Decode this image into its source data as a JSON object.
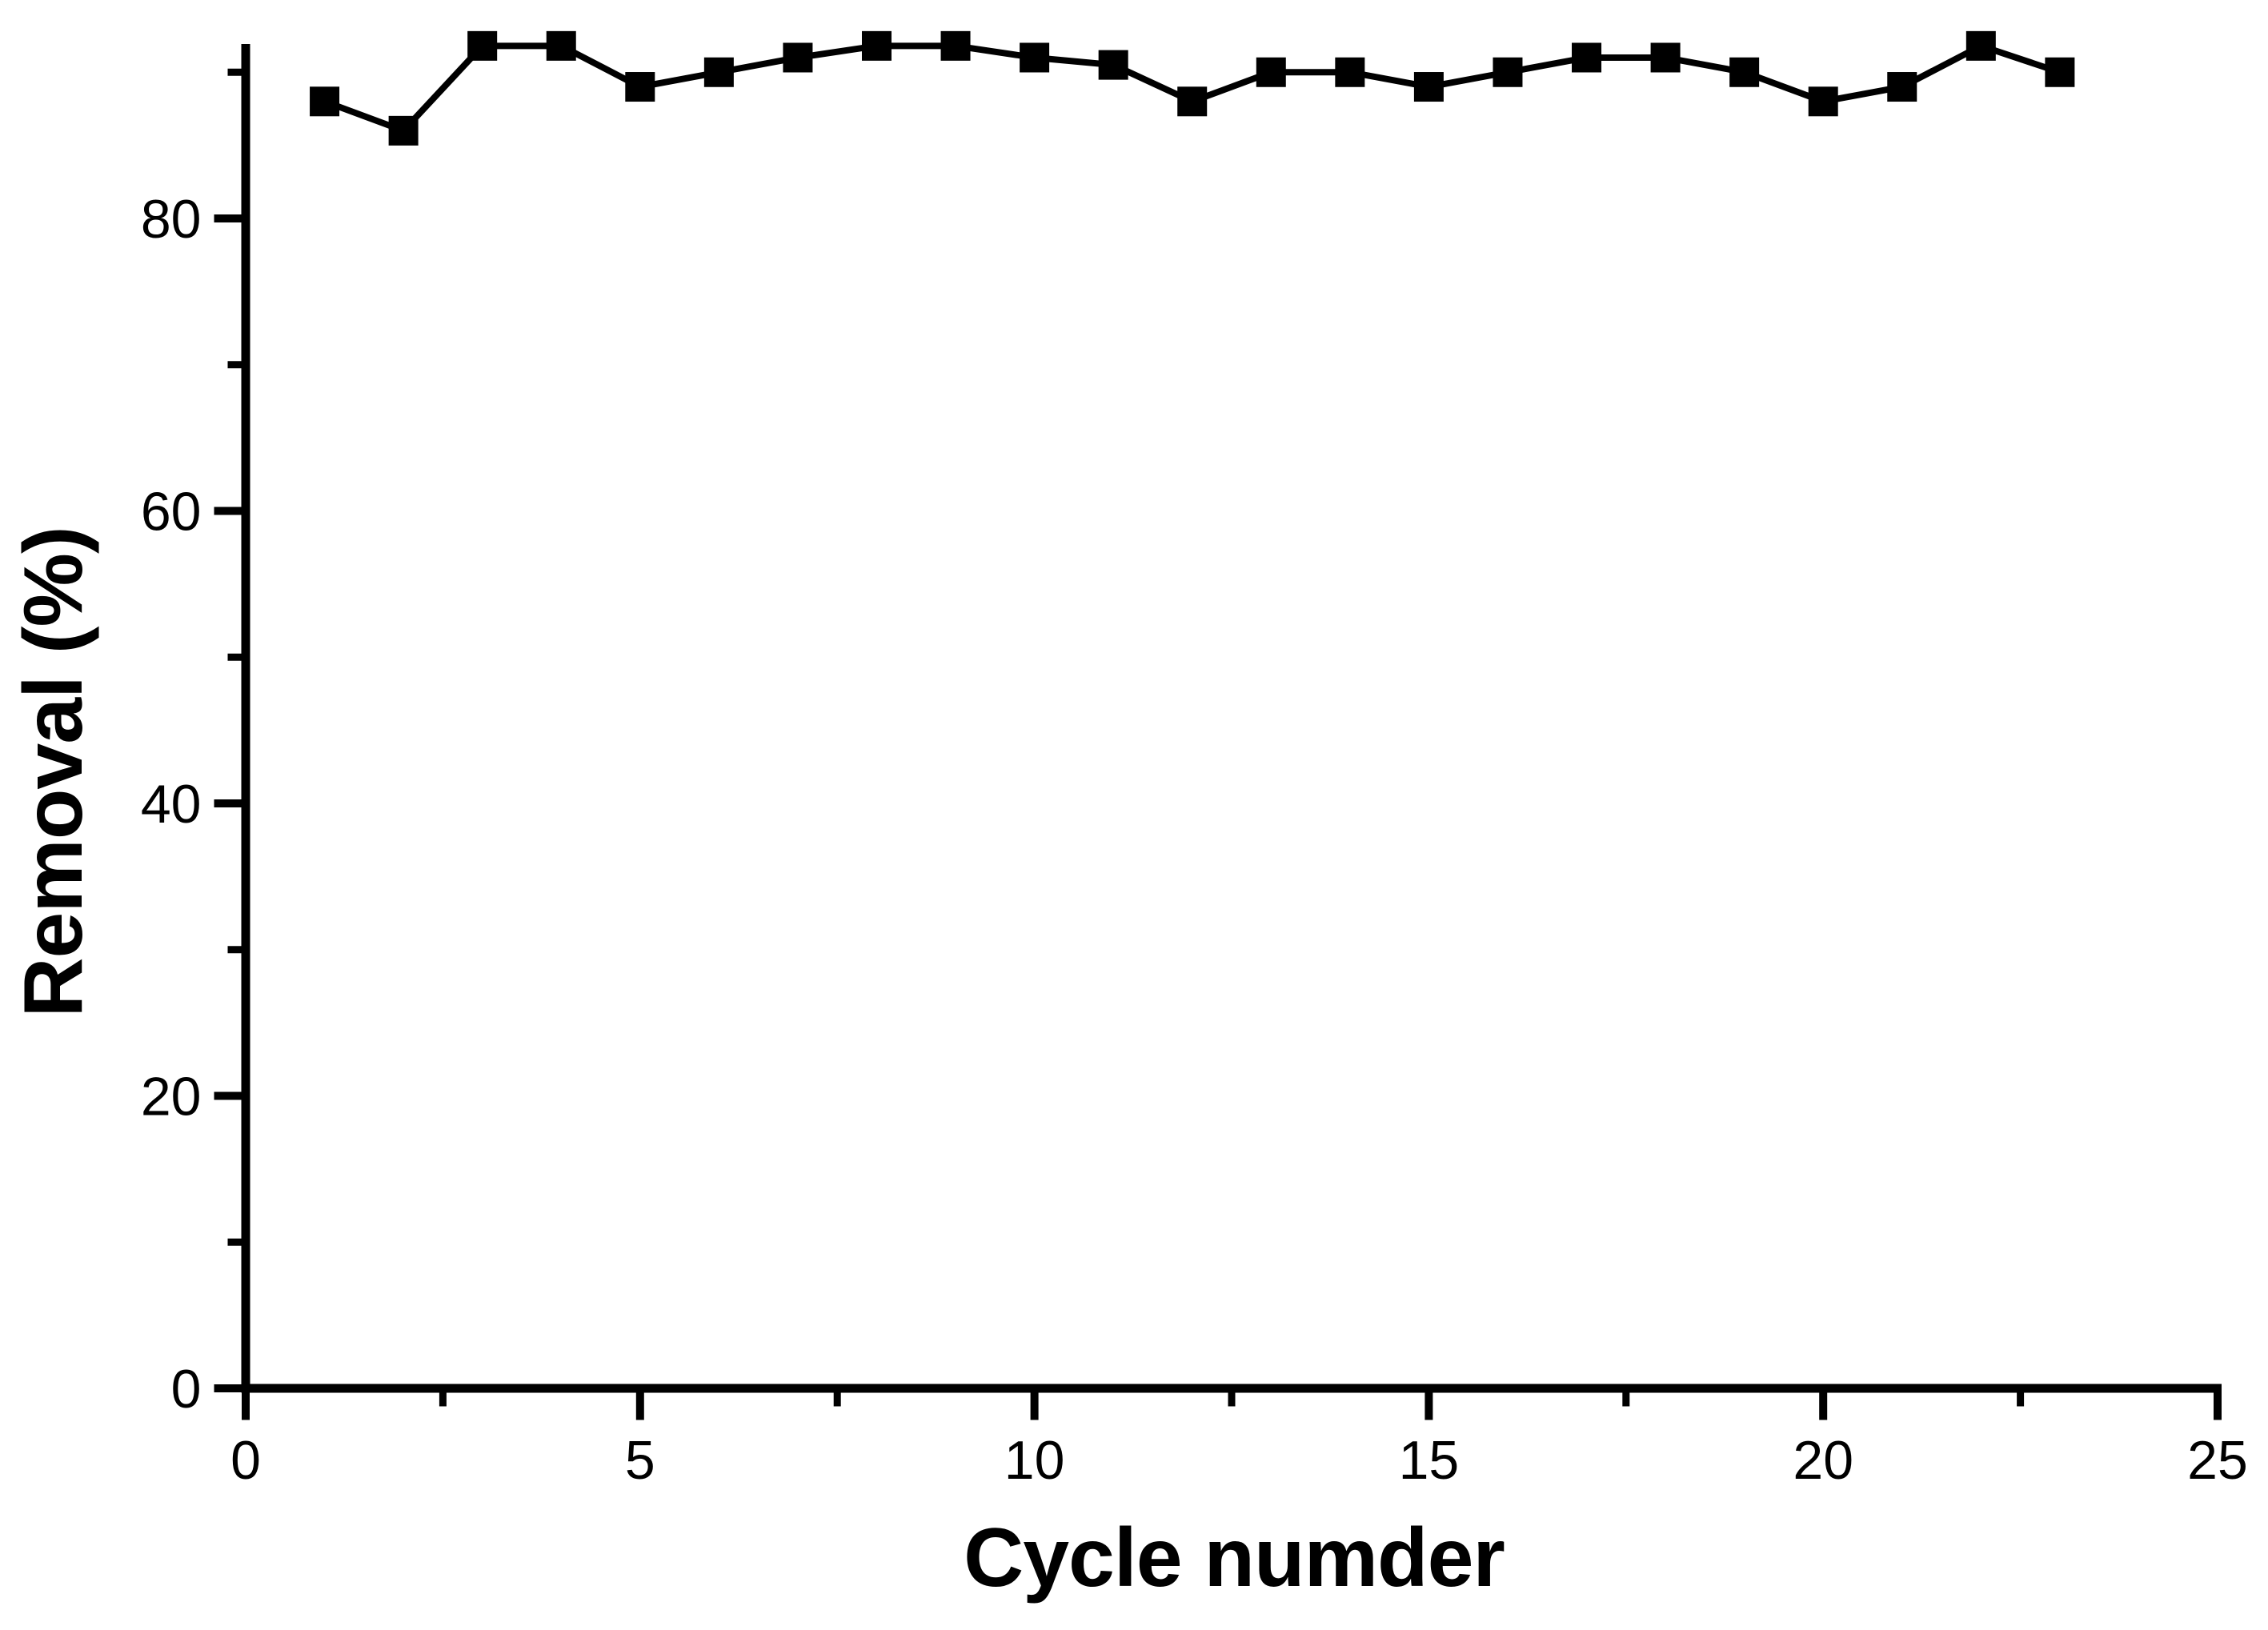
{
  "figure": {
    "background_color": "#ffffff",
    "ink_color": "#000000"
  },
  "chart_data": {
    "type": "line",
    "title": "",
    "xlabel": "Cycle numder",
    "ylabel": "Removal (%)",
    "series": [
      {
        "name": "Removal",
        "marker": "filled-square",
        "color": "#000000",
        "x": [
          1,
          2,
          3,
          4,
          5,
          6,
          7,
          8,
          9,
          10,
          11,
          12,
          13,
          14,
          15,
          16,
          17,
          18,
          19,
          20,
          21,
          22,
          23
        ],
        "values": [
          88.0,
          86.0,
          91.8,
          91.8,
          89.0,
          90.0,
          91.0,
          91.8,
          91.8,
          91.0,
          90.5,
          88.0,
          90.0,
          90.0,
          89.0,
          90.0,
          91.0,
          91.0,
          90.0,
          88.0,
          89.0,
          91.8,
          90.0
        ]
      }
    ],
    "xlim": [
      0,
      25
    ],
    "ylim": [
      0,
      92
    ],
    "x_major_ticks": [
      0,
      5,
      10,
      15,
      20,
      25
    ],
    "x_major_tick_labels": [
      "0",
      "5",
      "10",
      "15",
      "20",
      "25"
    ],
    "x_minor_ticks": [
      2.5,
      7.5,
      12.5,
      17.5,
      22.5
    ],
    "y_major_ticks": [
      0,
      20,
      40,
      60,
      80
    ],
    "y_major_tick_labels": [
      "0",
      "20",
      "40",
      "60",
      "80"
    ],
    "y_minor_ticks": [
      10,
      30,
      50,
      70,
      90
    ],
    "grid": false,
    "legend_position": "none",
    "tick_direction": "out"
  }
}
